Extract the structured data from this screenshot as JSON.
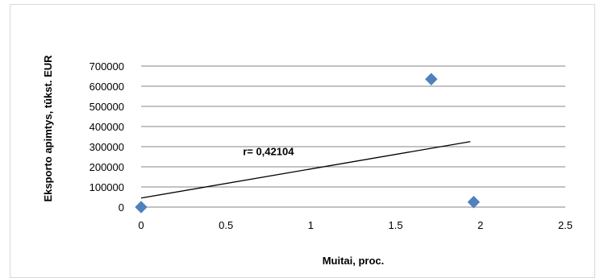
{
  "chart_data": {
    "type": "scatter",
    "xlabel": "Muitai, proc.",
    "ylabel": "Eksporto apimtys, tūkst. EUR",
    "xlim": [
      0,
      2.5
    ],
    "ylim": [
      0,
      700000
    ],
    "x_ticks": [
      "0",
      "0.5",
      "1",
      "1.5",
      "2",
      "2.5"
    ],
    "y_ticks": [
      "0",
      "100000",
      "200000",
      "300000",
      "400000",
      "500000",
      "600000",
      "700000"
    ],
    "x_tick_values": [
      0,
      0.5,
      1,
      1.5,
      2,
      2.5
    ],
    "y_tick_values": [
      0,
      100000,
      200000,
      300000,
      400000,
      500000,
      600000,
      700000
    ],
    "grid": "horizontal",
    "legend": "none",
    "series": [
      {
        "points": [
          {
            "x": 0,
            "y": 0
          },
          {
            "x": 1.71,
            "y": 635000
          },
          {
            "x": 1.96,
            "y": 25000
          }
        ],
        "color": "#4f81bd",
        "marker": "diamond"
      }
    ],
    "trendline": {
      "x": [
        0,
        1.94
      ],
      "y": [
        45000,
        325000
      ],
      "color": "#000000"
    },
    "annotation": {
      "text": "r= 0,42104",
      "x": 0.98,
      "y": 250000
    }
  }
}
